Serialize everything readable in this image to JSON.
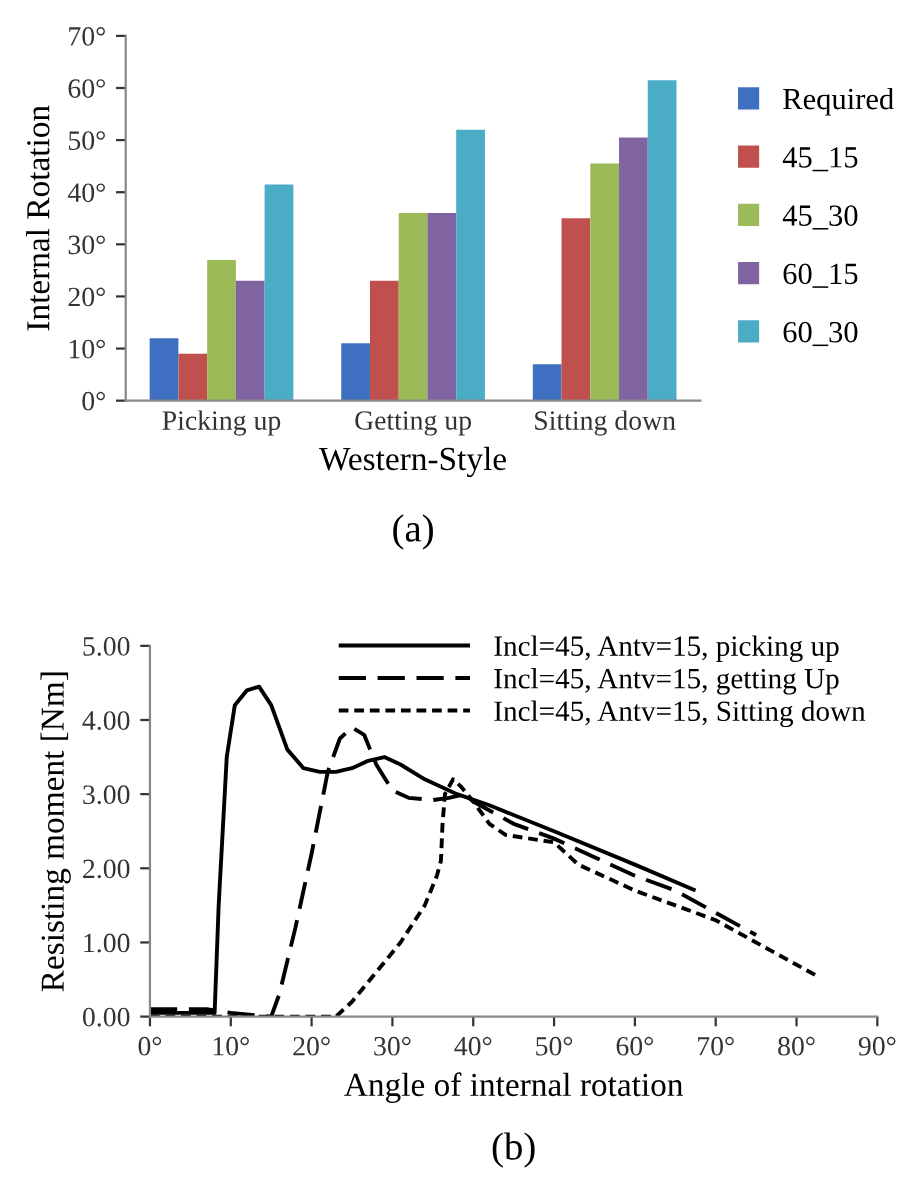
{
  "chart_data": [
    {
      "type": "bar",
      "ylabel": "Internal Rotation",
      "xlabel": "Western-Style",
      "annotations": [
        "(a)"
      ],
      "categories": [
        "Picking up",
        "Getting up",
        "Sitting down"
      ],
      "series": [
        {
          "name": "Required",
          "color": "#3f6fc0",
          "values": [
            12,
            11,
            7
          ]
        },
        {
          "name": "45_15",
          "color": "#c0504d",
          "values": [
            9,
            23,
            35
          ]
        },
        {
          "name": "45_30",
          "color": "#9bbb59",
          "values": [
            27,
            36,
            45.5
          ]
        },
        {
          "name": "60_15",
          "color": "#8064a2",
          "values": [
            23,
            36,
            50.5
          ]
        },
        {
          "name": "60_30",
          "color": "#4bacc6",
          "values": [
            41.5,
            52,
            61.5
          ]
        }
      ],
      "ylim": [
        0,
        70
      ],
      "yticks": [
        {
          "value": 0,
          "label": "0°"
        },
        {
          "value": 10,
          "label": "10°"
        },
        {
          "value": 20,
          "label": "20°"
        },
        {
          "value": 30,
          "label": "30°"
        },
        {
          "value": 40,
          "label": "40°"
        },
        {
          "value": 50,
          "label": "50°"
        },
        {
          "value": 60,
          "label": "60°"
        },
        {
          "value": 70,
          "label": "70°"
        }
      ],
      "grid": false,
      "legend": "right"
    },
    {
      "type": "line",
      "ylabel": "Resisting moment [Nm]",
      "xlabel": "Angle of internal rotation",
      "annotations": [
        "(b)"
      ],
      "series": [
        {
          "name": "Incl=45, Antv=15, picking up",
          "color": "#000000",
          "line_style": "solid",
          "x": [
            0,
            8,
            8.5,
            9.5,
            10.5,
            12,
            13.5,
            15,
            17,
            19,
            21,
            23,
            25,
            27,
            29,
            31,
            34,
            38,
            42,
            50,
            60,
            67.5
          ],
          "values": [
            0.05,
            0.05,
            1.5,
            3.5,
            4.2,
            4.4,
            4.45,
            4.2,
            3.6,
            3.35,
            3.3,
            3.3,
            3.35,
            3.45,
            3.5,
            3.4,
            3.2,
            3.0,
            2.85,
            2.5,
            2.05,
            1.7
          ]
        },
        {
          "name": "Incl=45, Antv=15, getting Up",
          "color": "#000000",
          "line_style": "dashed",
          "x": [
            0,
            7,
            10,
            15,
            16,
            18,
            20,
            22,
            23.5,
            25,
            26.5,
            28,
            30,
            32,
            35,
            37,
            39,
            40,
            45,
            50,
            55,
            60,
            65,
            70,
            75
          ],
          "values": [
            0.1,
            0.1,
            0.05,
            0.0,
            0.3,
            1.2,
            2.2,
            3.3,
            3.75,
            3.9,
            3.8,
            3.4,
            3.05,
            2.95,
            2.92,
            2.95,
            3.0,
            2.9,
            2.6,
            2.4,
            2.15,
            1.9,
            1.7,
            1.4,
            1.1
          ]
        },
        {
          "name": "Incl=45, Antv=15, Sitting down",
          "color": "#000000",
          "line_style": "dotted",
          "x": [
            0,
            17,
            23,
            25,
            28,
            31,
            34,
            35.5,
            36,
            36.2,
            36.5,
            37.5,
            38.5,
            40,
            42,
            44,
            47,
            50,
            53,
            60,
            70,
            82.5
          ],
          "values": [
            0.0,
            0.0,
            0.0,
            0.2,
            0.6,
            1.0,
            1.5,
            1.9,
            2.1,
            2.6,
            3.0,
            3.2,
            3.1,
            2.9,
            2.6,
            2.45,
            2.4,
            2.35,
            2.05,
            1.7,
            1.3,
            0.55
          ]
        }
      ],
      "xlim": [
        0,
        90
      ],
      "xticks": [
        {
          "value": 0,
          "label": "0°"
        },
        {
          "value": 10,
          "label": "10°"
        },
        {
          "value": 20,
          "label": "20°"
        },
        {
          "value": 30,
          "label": "30°"
        },
        {
          "value": 40,
          "label": "40°"
        },
        {
          "value": 50,
          "label": "50°"
        },
        {
          "value": 60,
          "label": "60°"
        },
        {
          "value": 70,
          "label": "70°"
        },
        {
          "value": 80,
          "label": "80°"
        },
        {
          "value": 90,
          "label": "90°"
        }
      ],
      "ylim": [
        0,
        5
      ],
      "yticks": [
        {
          "value": 0,
          "label": "0.00"
        },
        {
          "value": 1,
          "label": "1.00"
        },
        {
          "value": 2,
          "label": "2.00"
        },
        {
          "value": 3,
          "label": "3.00"
        },
        {
          "value": 4,
          "label": "4.00"
        },
        {
          "value": 5,
          "label": "5.00"
        }
      ],
      "grid": false,
      "legend": "top right"
    }
  ]
}
